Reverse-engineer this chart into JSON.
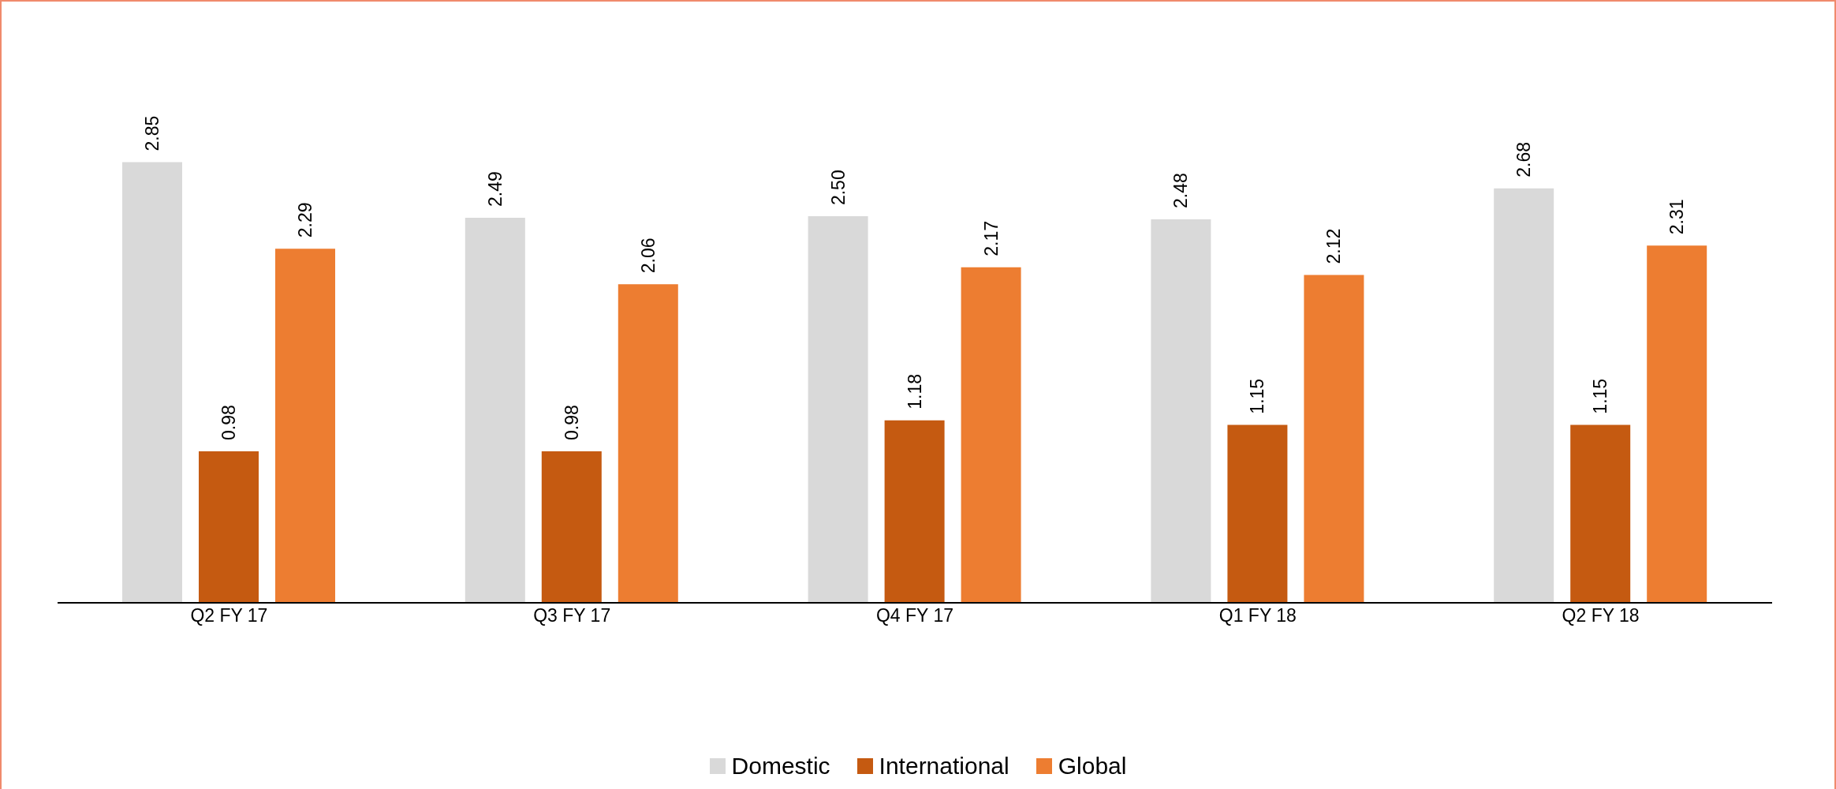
{
  "chart_data": {
    "type": "bar",
    "categories": [
      "Q2 FY 17",
      "Q3 FY 17",
      "Q4 FY 17",
      "Q1 FY 18",
      "Q2 FY 18"
    ],
    "series": [
      {
        "name": "Domestic",
        "color": "#d9d9d9",
        "values": [
          2.85,
          2.49,
          2.5,
          2.48,
          2.68
        ],
        "value_labels": [
          "2.85",
          "2.49",
          "2.50",
          "2.48",
          "2.68"
        ]
      },
      {
        "name": "International",
        "color": "#c55a11",
        "values": [
          0.98,
          0.98,
          1.18,
          1.15,
          1.15
        ],
        "value_labels": [
          "0.98",
          "0.98",
          "1.18",
          "1.15",
          "1.15"
        ]
      },
      {
        "name": "Global",
        "color": "#ed7d31",
        "values": [
          2.29,
          2.06,
          2.17,
          2.12,
          2.31
        ],
        "value_labels": [
          "2.29",
          "2.06",
          "2.17",
          "2.12",
          "2.31"
        ]
      }
    ],
    "legend": "bottom",
    "grid": false
  }
}
